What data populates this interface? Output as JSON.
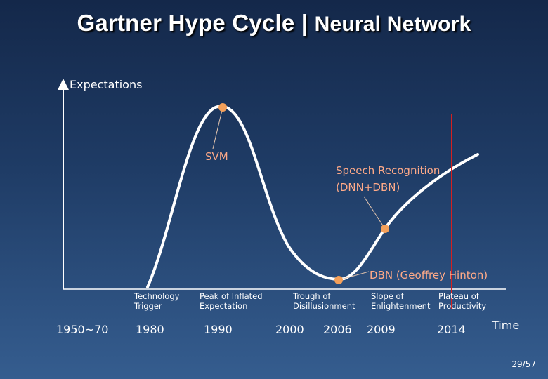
{
  "title": "Gartner Hype Cycle | ",
  "title_bold2": "Neural Network",
  "axis": {
    "y_label": "Expectations",
    "x_label": "Time"
  },
  "annotations": {
    "svm": "SVM",
    "speech_line1": "Speech Recognition",
    "speech_line2": "(DNN+DBN)",
    "dbn": "DBN (Geoffrey Hinton)"
  },
  "phases": [
    {
      "line1": "Technology",
      "line2": "Trigger"
    },
    {
      "line1": "Peak of Inflated",
      "line2": "Expectation"
    },
    {
      "line1": "Trough of",
      "line2": "Disillusionment"
    },
    {
      "line1": "Slope of",
      "line2": "Enlightenment"
    },
    {
      "line1": "Plateau of",
      "line2": "Productivity"
    }
  ],
  "years": [
    "1950~70",
    "1980",
    "1990",
    "2000",
    "2006",
    "2009",
    "2014"
  ],
  "page_number": "29/57",
  "colors": {
    "curve": "#ffffff",
    "marker": "#f4a05a",
    "annotation_text": "#ffaa88",
    "current_year_line": "#d42020"
  }
}
